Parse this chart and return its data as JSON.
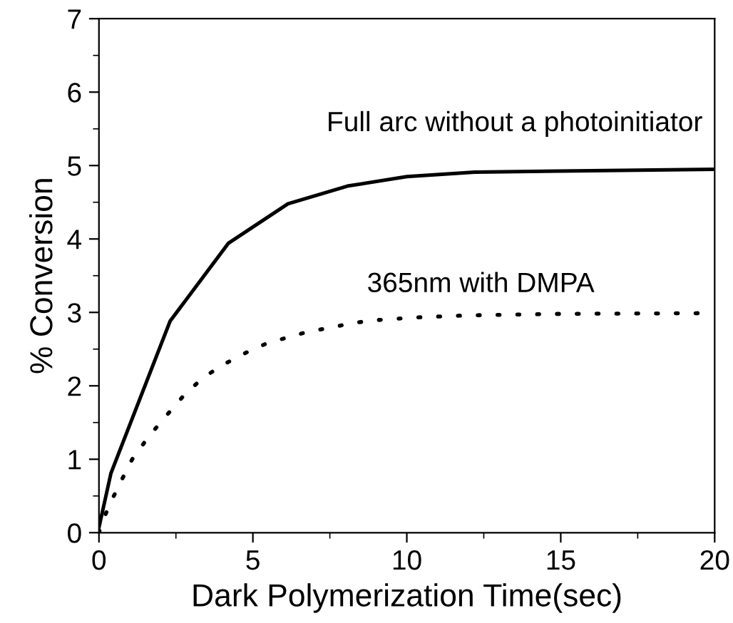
{
  "chart_data": {
    "type": "line",
    "xlabel": "Dark Polymerization Time(sec)",
    "ylabel": "% Conversion",
    "xlim": [
      0,
      20
    ],
    "xticks": [
      0,
      5,
      10,
      15,
      20
    ],
    "ylim": [
      0,
      7
    ],
    "yticks": [
      0,
      1,
      2,
      3,
      4,
      5,
      6,
      7
    ],
    "grid": false,
    "legend": false,
    "marker": "none",
    "series": [
      {
        "color": "#000000",
        "line_style": "solid",
        "x": [
          0,
          0.39,
          2.31,
          4.2,
          6.14,
          8.07,
          10.0,
          12.2,
          20
        ],
        "values": [
          0.07,
          0.81,
          2.88,
          3.94,
          4.48,
          4.72,
          4.85,
          4.91,
          4.95
        ]
      },
      {
        "color": "#000000",
        "line_style": "dotted",
        "x": [
          0,
          0.09,
          0.4,
          0.74,
          1.08,
          1.6,
          2.18,
          2.78,
          3.41,
          4.09,
          4.77,
          5.46,
          6.14,
          6.82,
          7.5,
          8.18,
          8.86,
          9.54,
          10.2,
          12.0,
          15.0,
          20
        ],
        "values": [
          0,
          0.13,
          0.43,
          0.72,
          1.0,
          1.3,
          1.59,
          1.88,
          2.12,
          2.3,
          2.45,
          2.58,
          2.66,
          2.74,
          2.79,
          2.85,
          2.89,
          2.91,
          2.93,
          2.96,
          2.98,
          2.99
        ]
      }
    ],
    "annotations": [
      "Full arc without a photoinitiator",
      "365nm with DMPA"
    ]
  }
}
